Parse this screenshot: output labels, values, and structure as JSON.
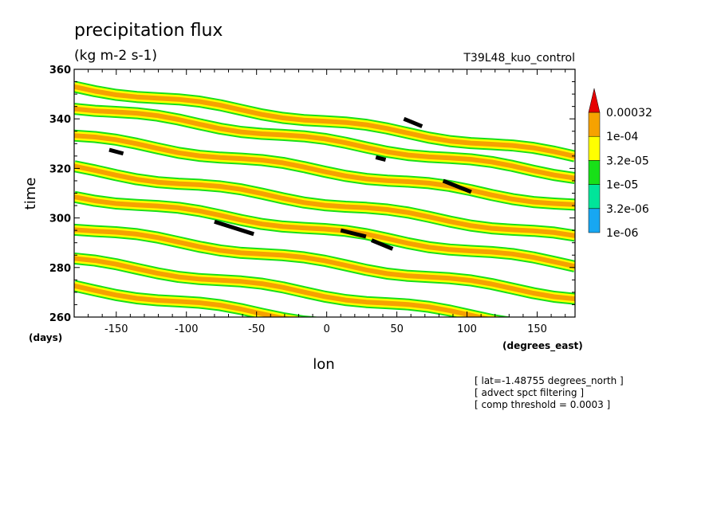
{
  "chart_data": {
    "type": "heatmap",
    "title": "precipitation flux",
    "subtitle": "(kg m-2 s-1)",
    "run_label": "T39L48_kuo_control",
    "xlabel": "lon",
    "ylabel": "time",
    "xunits": "(degrees_east)",
    "yunits": "(days)",
    "xlim": [
      -180,
      177
    ],
    "ylim": [
      260,
      360
    ],
    "xticks": [
      -150,
      -100,
      -50,
      0,
      50,
      100,
      150
    ],
    "xtick_labels": [
      "-150",
      "-100",
      "-50",
      "0",
      "50",
      "100",
      "150"
    ],
    "yticks": [
      260,
      280,
      300,
      320,
      340,
      360
    ],
    "ytick_labels": [
      "260",
      "280",
      "300",
      "320",
      "340",
      "360"
    ],
    "legend_placement": "right",
    "colorbar": {
      "levels": [
        "1e-06",
        "3.2e-06",
        "1e-05",
        "3.2e-05",
        "1e-04",
        "0.00032"
      ],
      "colors": [
        "#17a7f2",
        "#00e59a",
        "#18e018",
        "#ffff00",
        "#f6a200",
        "#e60000"
      ]
    },
    "bands": [
      {
        "lon": [
          -180,
          177
        ],
        "time": [
          353,
          325
        ],
        "level": "1e-04"
      },
      {
        "lon": [
          -180,
          177
        ],
        "time": [
          345,
          317
        ],
        "level": "1e-04"
      },
      {
        "lon": [
          -180,
          177
        ],
        "time": [
          333,
          305
        ],
        "level": "1e-04"
      },
      {
        "lon": [
          -180,
          177
        ],
        "time": [
          320,
          292
        ],
        "level": "1e-04"
      },
      {
        "lon": [
          -180,
          177
        ],
        "time": [
          309,
          281
        ],
        "level": "1e-04"
      },
      {
        "lon": [
          -180,
          177
        ],
        "time": [
          296,
          268
        ],
        "level": "1e-04"
      },
      {
        "lon": [
          -180,
          177
        ],
        "time": [
          283,
          255
        ],
        "level": "1e-04"
      },
      {
        "lon": [
          -180,
          177
        ],
        "time": [
          272,
          244
        ],
        "level": "1e-04"
      }
    ],
    "threshold_exceedances": [
      {
        "lon": [
          -155,
          -145
        ],
        "time": [
          327.5,
          326
        ]
      },
      {
        "lon": [
          -80,
          -52
        ],
        "time": [
          298.5,
          293.5
        ]
      },
      {
        "lon": [
          10,
          28
        ],
        "time": [
          295,
          292.5
        ]
      },
      {
        "lon": [
          32,
          47
        ],
        "time": [
          291,
          287.5
        ]
      },
      {
        "lon": [
          35,
          42
        ],
        "time": [
          324.5,
          323.5
        ]
      },
      {
        "lon": [
          55,
          68
        ],
        "time": [
          340,
          337
        ]
      },
      {
        "lon": [
          83,
          103
        ],
        "time": [
          315,
          310.5
        ]
      }
    ],
    "annotations": [
      "[ lat=-1.48755 degrees_north ]",
      "[ advect spct filtering ]",
      "[ comp threshold = 0.0003 ]"
    ]
  }
}
